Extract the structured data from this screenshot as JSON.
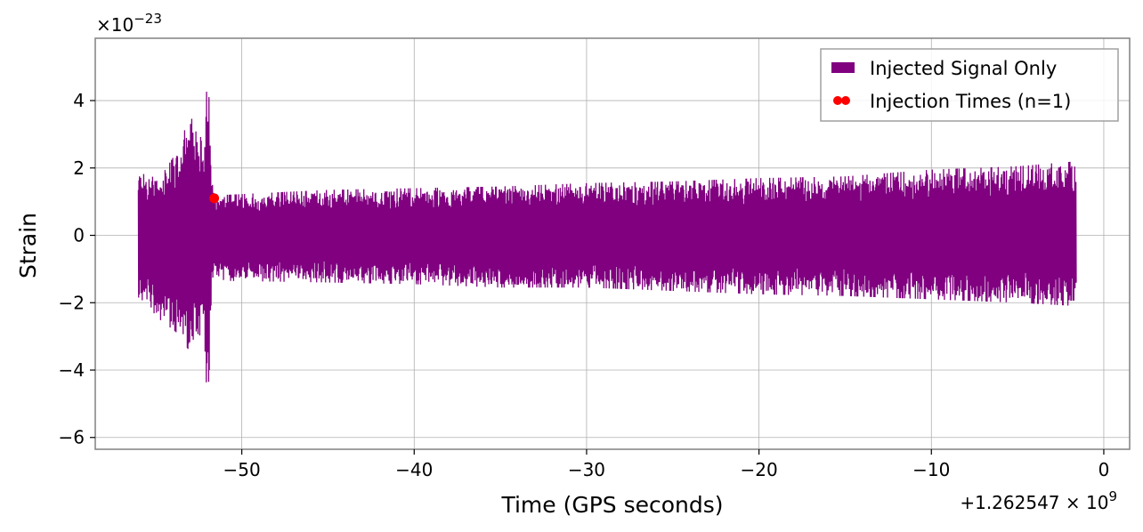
{
  "chart_data": {
    "type": "line",
    "xlabel": "Time (GPS seconds)",
    "ylabel": "Strain",
    "x_offset_text": "+1.262547 × 10",
    "x_offset_exp": "9",
    "y_scale_text": "×10",
    "y_scale_exp": "−23",
    "xlim": [
      -58.5,
      1.5
    ],
    "ylim": [
      -6.35,
      5.85
    ],
    "xticks": [
      -50,
      -40,
      -30,
      -20,
      -10,
      0
    ],
    "xtick_labels": [
      "−50",
      "−40",
      "−30",
      "−20",
      "−10",
      "0"
    ],
    "yticks": [
      -6,
      -4,
      -2,
      0,
      2,
      4
    ],
    "ytick_labels": [
      "−6",
      "−4",
      "−2",
      "0",
      "2",
      "4"
    ],
    "grid": true,
    "legend_position": "top-right",
    "colors": {
      "signal": "#800080",
      "injection": "#ff0000",
      "grid": "#b0b0b0",
      "frame": "#808080"
    },
    "series": [
      {
        "name": "Injected Signal Only",
        "style": "line",
        "color": "#800080",
        "x_range": [
          -56.0,
          -1.6
        ],
        "envelope": {
          "x": [
            -56.0,
            -55.5,
            -55.0,
            -54.5,
            -54.0,
            -53.5,
            -53.0,
            -52.5,
            -52.2,
            -51.95,
            -51.8,
            -51.7,
            -51.6,
            -51.5,
            -51.0,
            -45.0,
            -40.0,
            -35.0,
            -30.0,
            -25.0,
            -20.0,
            -15.0,
            -10.0,
            -5.0,
            -1.6
          ],
          "upper": [
            2.0,
            1.9,
            1.8,
            1.9,
            2.3,
            2.9,
            3.5,
            3.3,
            2.3,
            5.4,
            2.5,
            1.5,
            1.3,
            1.1,
            1.2,
            1.35,
            1.4,
            1.45,
            1.55,
            1.6,
            1.7,
            1.75,
            1.95,
            2.05,
            2.2
          ],
          "lower": [
            -1.95,
            -1.9,
            -2.4,
            -2.6,
            -2.8,
            -3.0,
            -3.5,
            -3.4,
            -2.5,
            -5.8,
            -2.2,
            -1.5,
            -1.2,
            -1.15,
            -1.35,
            -1.4,
            -1.45,
            -1.55,
            -1.55,
            -1.65,
            -1.75,
            -1.8,
            -1.9,
            -2.0,
            -2.1
          ]
        }
      },
      {
        "name": "Injection Times (n=1)",
        "style": "scatter",
        "color": "#ff0000",
        "points": [
          {
            "x": -51.6,
            "y": 1.1
          }
        ]
      }
    ]
  }
}
